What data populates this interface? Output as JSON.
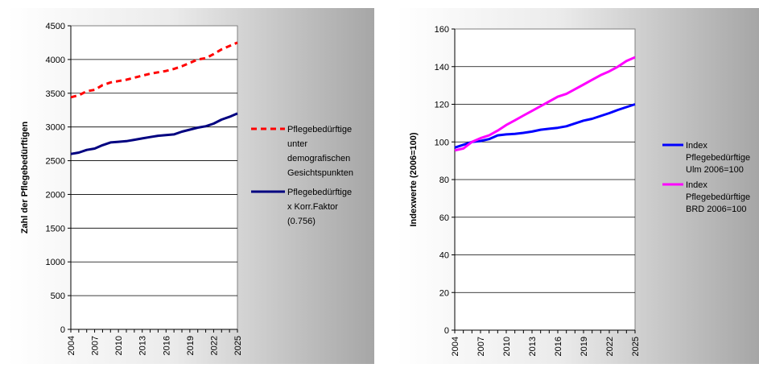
{
  "chart_data": [
    {
      "type": "line",
      "ylabel": "Zahl der Pflegebedürftigen",
      "xlabel": "",
      "ylim": [
        0,
        4500
      ],
      "yticks": [
        0,
        500,
        1000,
        1500,
        2000,
        2500,
        3000,
        3500,
        4000,
        4500
      ],
      "xticks": [
        "2004",
        "2007",
        "2010",
        "2013",
        "2016",
        "2019",
        "2022",
        "2025"
      ],
      "x": [
        2004,
        2005,
        2006,
        2007,
        2008,
        2009,
        2010,
        2011,
        2012,
        2013,
        2014,
        2015,
        2016,
        2017,
        2018,
        2019,
        2020,
        2021,
        2022,
        2023,
        2024,
        2025
      ],
      "grid": true,
      "legend_position": "right",
      "series": [
        {
          "name": "Pflegebedürftige unter demografischen Gesichtspunkten",
          "legend_lines": [
            "Pflegebedürftige",
            "unter",
            "demografischen",
            "Gesichtspunkten"
          ],
          "color": "#ff0000",
          "style": "dashed",
          "values": [
            3440,
            3470,
            3530,
            3550,
            3620,
            3660,
            3680,
            3700,
            3730,
            3760,
            3790,
            3810,
            3830,
            3860,
            3900,
            3950,
            4000,
            4020,
            4080,
            4150,
            4200,
            4250
          ]
        },
        {
          "name": "Pflegebedürftige x Korr.Faktor (0.756)",
          "legend_lines": [
            "Pflegebedürftige",
            "x Korr.Faktor",
            "(0.756)"
          ],
          "color": "#000080",
          "style": "solid",
          "values": [
            2600,
            2620,
            2660,
            2680,
            2730,
            2770,
            2780,
            2790,
            2810,
            2830,
            2850,
            2870,
            2880,
            2890,
            2930,
            2960,
            2990,
            3010,
            3050,
            3110,
            3150,
            3200
          ]
        }
      ]
    },
    {
      "type": "line",
      "ylabel": "Indexwerte (2006=100)",
      "xlabel": "",
      "ylim": [
        0,
        160
      ],
      "yticks": [
        0,
        20,
        40,
        60,
        80,
        100,
        120,
        140,
        160
      ],
      "xticks": [
        "2004",
        "2007",
        "2010",
        "2013",
        "2016",
        "2019",
        "2022",
        "2025"
      ],
      "x": [
        2004,
        2005,
        2006,
        2007,
        2008,
        2009,
        2010,
        2011,
        2012,
        2013,
        2014,
        2015,
        2016,
        2017,
        2018,
        2019,
        2020,
        2021,
        2022,
        2023,
        2024,
        2025
      ],
      "grid": true,
      "legend_position": "right",
      "series": [
        {
          "name": "Index Pflegebedürftige Ulm 2006=100",
          "legend_lines": [
            "Index",
            "Pflegebedürftige",
            "Ulm 2006=100"
          ],
          "color": "#0000ff",
          "style": "solid",
          "values": [
            97,
            98.5,
            100,
            100.5,
            101.5,
            103.5,
            104,
            104.3,
            104.8,
            105.5,
            106.5,
            107,
            107.5,
            108.3,
            109.8,
            111.3,
            112.3,
            113.8,
            115.3,
            117,
            118.5,
            120
          ]
        },
        {
          "name": "Index Pflegebedürftige BRD 2006=100",
          "legend_lines": [
            "Index",
            "Pflegebedürftige",
            "BRD 2006=100"
          ],
          "color": "#ff00ff",
          "style": "solid",
          "values": [
            95.5,
            96.5,
            100,
            102,
            103.5,
            106,
            109,
            111.5,
            114,
            116.5,
            119,
            121.5,
            124,
            125.5,
            128,
            130.5,
            133,
            135.5,
            137.5,
            140,
            143,
            145
          ]
        }
      ]
    }
  ]
}
